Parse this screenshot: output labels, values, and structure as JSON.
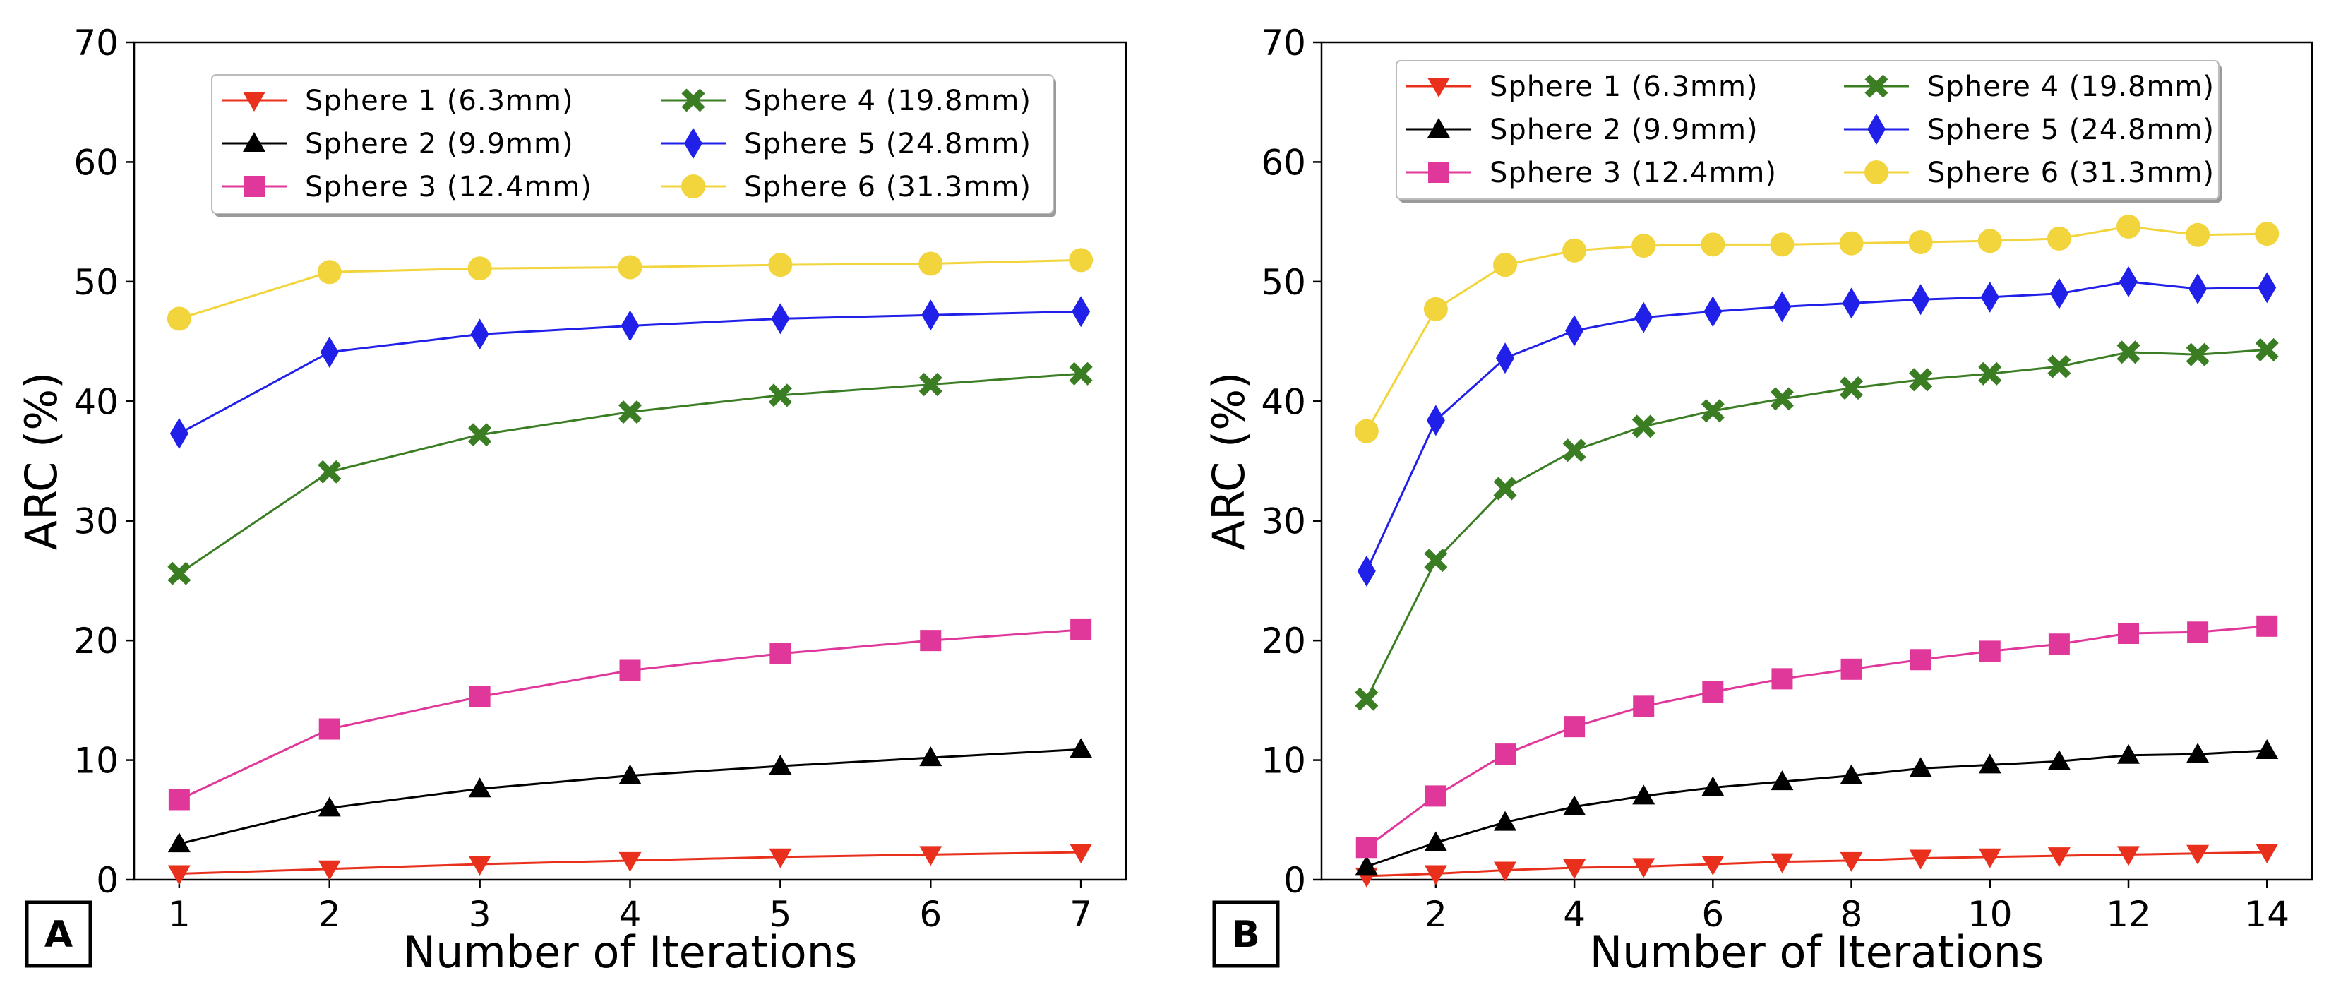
{
  "chart_data": [
    {
      "type": "line",
      "panel_label": "A",
      "xlabel": "Number of Iterations",
      "ylabel": "ARC (%)",
      "xlim": [
        0.7,
        7.3
      ],
      "ylim": [
        0,
        70
      ],
      "xticks": [
        1,
        2,
        3,
        4,
        5,
        6,
        7
      ],
      "yticks": [
        0,
        10,
        20,
        30,
        40,
        50,
        60,
        70
      ],
      "legend_position": "top-center",
      "x": [
        1,
        2,
        3,
        4,
        5,
        6,
        7
      ],
      "series": [
        {
          "name": "Sphere 1 (6.3mm)",
          "color": "#e8301c",
          "marker": "triangle-down",
          "values": [
            0.5,
            0.9,
            1.3,
            1.6,
            1.9,
            2.1,
            2.3
          ]
        },
        {
          "name": "Sphere 2 (9.9mm)",
          "color": "#000000",
          "marker": "triangle-up",
          "values": [
            3.0,
            6.0,
            7.6,
            8.7,
            9.5,
            10.2,
            10.9
          ]
        },
        {
          "name": "Sphere 3 (12.4mm)",
          "color": "#e0379a",
          "marker": "square",
          "values": [
            6.7,
            12.6,
            15.3,
            17.5,
            18.9,
            20.0,
            20.9
          ]
        },
        {
          "name": "Sphere 4 (19.8mm)",
          "color": "#3a7d23",
          "marker": "x",
          "values": [
            25.6,
            34.1,
            37.2,
            39.1,
            40.5,
            41.4,
            42.3
          ]
        },
        {
          "name": "Sphere 5 (24.8mm)",
          "color": "#2020e8",
          "marker": "diamond",
          "values": [
            37.3,
            44.1,
            45.6,
            46.3,
            46.9,
            47.2,
            47.5
          ]
        },
        {
          "name": "Sphere 6 (31.3mm)",
          "color": "#f2d43c",
          "marker": "circle",
          "values": [
            46.9,
            50.8,
            51.1,
            51.2,
            51.4,
            51.5,
            51.8
          ]
        }
      ]
    },
    {
      "type": "line",
      "panel_label": "B",
      "xlabel": "Number of Iterations",
      "ylabel": "ARC (%)",
      "xlim": [
        0.35,
        14.65
      ],
      "ylim": [
        0,
        70
      ],
      "xticks": [
        2,
        4,
        6,
        8,
        10,
        12,
        14
      ],
      "yticks": [
        0,
        10,
        20,
        30,
        40,
        50,
        60,
        70
      ],
      "legend_position": "top-center",
      "x": [
        1,
        2,
        3,
        4,
        5,
        6,
        7,
        8,
        9,
        10,
        11,
        12,
        13,
        14
      ],
      "series": [
        {
          "name": "Sphere 1 (6.3mm)",
          "color": "#e8301c",
          "marker": "triangle-down",
          "values": [
            0.3,
            0.5,
            0.8,
            1.0,
            1.1,
            1.3,
            1.5,
            1.6,
            1.8,
            1.9,
            2.0,
            2.1,
            2.2,
            2.3
          ]
        },
        {
          "name": "Sphere 2 (9.9mm)",
          "color": "#000000",
          "marker": "triangle-up",
          "values": [
            1.1,
            3.1,
            4.8,
            6.1,
            7.0,
            7.7,
            8.2,
            8.7,
            9.3,
            9.6,
            9.9,
            10.4,
            10.5,
            10.8
          ]
        },
        {
          "name": "Sphere 3 (12.4mm)",
          "color": "#e0379a",
          "marker": "square",
          "values": [
            2.7,
            7.0,
            10.5,
            12.8,
            14.5,
            15.7,
            16.8,
            17.6,
            18.4,
            19.1,
            19.7,
            20.6,
            20.7,
            21.2
          ]
        },
        {
          "name": "Sphere 4 (19.8mm)",
          "color": "#3a7d23",
          "marker": "x",
          "values": [
            15.1,
            26.7,
            32.7,
            35.9,
            37.9,
            39.2,
            40.2,
            41.1,
            41.8,
            42.3,
            42.9,
            44.1,
            43.9,
            44.3
          ]
        },
        {
          "name": "Sphere 5 (24.8mm)",
          "color": "#2020e8",
          "marker": "diamond",
          "values": [
            25.8,
            38.4,
            43.6,
            45.9,
            47.0,
            47.5,
            47.9,
            48.2,
            48.5,
            48.7,
            49.0,
            50.0,
            49.4,
            49.5
          ]
        },
        {
          "name": "Sphere 6 (31.3mm)",
          "color": "#f2d43c",
          "marker": "circle",
          "values": [
            37.5,
            47.7,
            51.4,
            52.6,
            53.0,
            53.1,
            53.1,
            53.2,
            53.3,
            53.4,
            53.6,
            54.6,
            53.9,
            54.0
          ]
        }
      ]
    }
  ]
}
